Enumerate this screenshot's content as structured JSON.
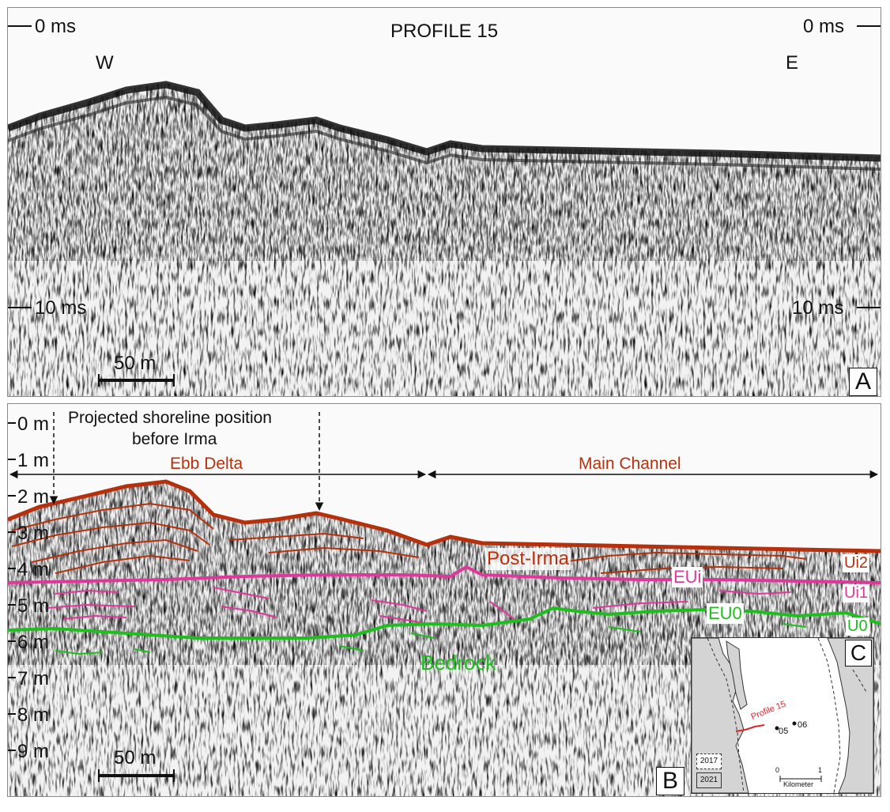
{
  "panel_a": {
    "title": "PROFILE 15",
    "left_end": "W",
    "right_end": "E",
    "time_top_left": "0 ms",
    "time_top_right": "0 ms",
    "time_mid_left": "10 ms",
    "time_mid_right": "10 ms",
    "scale_bar": "50 m",
    "panel_label": "A"
  },
  "panel_b": {
    "depth_labels": [
      "0 m",
      "1 m",
      "2 m",
      "3 m",
      "4 m",
      "5 m",
      "6 m",
      "7 m",
      "8 m",
      "9 m"
    ],
    "shoreline_note_line1": "Projected shoreline position",
    "shoreline_note_line2": "before Irma",
    "zone_left": "Ebb Delta",
    "zone_right": "Main Channel",
    "units": {
      "post_irma": "Post-Irma",
      "eui": "EUi",
      "eu0": "EU0",
      "ui2": "Ui2",
      "ui1": "Ui1",
      "u0": "U0",
      "bedrock": "Bedrock"
    },
    "scale_bar": "50 m",
    "panel_label": "B"
  },
  "inset_c": {
    "panel_label": "C",
    "profile_label": "Profile 15",
    "points": [
      "05",
      "06"
    ],
    "legend": [
      "2017",
      "2021"
    ],
    "scale_zero": "0",
    "scale_one": "1",
    "scale_unit": "Kilometer"
  },
  "colors": {
    "post_irma": "#b5310e",
    "eui": "#e0379a",
    "eu0": "#1fbe1f",
    "profile_line": "#e0232a",
    "land": "#d4d4d4"
  }
}
